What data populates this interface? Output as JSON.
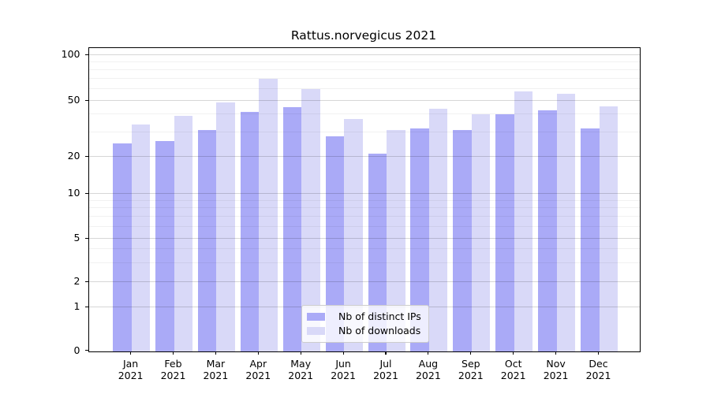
{
  "chart_data": {
    "type": "bar",
    "title": "Rattus.norvegicus 2021",
    "categories": [
      "Jan",
      "Feb",
      "Mar",
      "Apr",
      "May",
      "Jun",
      "Jul",
      "Aug",
      "Sep",
      "Oct",
      "Nov",
      "Dec"
    ],
    "year_label": "2021",
    "series": [
      {
        "name": "Nb of distinct IPs",
        "color": "#aaaaf7",
        "values": [
          25,
          26,
          31,
          42,
          45,
          28,
          21,
          32,
          31,
          40,
          43,
          32
        ]
      },
      {
        "name": "Nb of downloads",
        "color": "#d9d9f8",
        "values": [
          34,
          39,
          49,
          70,
          60,
          37,
          31,
          44,
          40,
          58,
          56,
          46
        ]
      }
    ],
    "xlabel": "",
    "ylabel": "",
    "yscale": "symlog",
    "ylim": [
      0,
      112
    ],
    "yticks": [
      0,
      1,
      2,
      5,
      10,
      20,
      50,
      100
    ],
    "minor_gridlines": [
      3,
      4,
      6,
      7,
      8,
      9,
      30,
      40,
      60,
      70,
      80,
      90
    ],
    "grid": true,
    "legend_position": "lower center"
  },
  "colors": {
    "background": "#ffffff",
    "axis": "#000000",
    "bar_distinct_ips": "#aaaaf7",
    "bar_downloads": "#d9d9f8",
    "grid_major": "#d6d6d6",
    "grid_minor": "#f0f0f0"
  }
}
